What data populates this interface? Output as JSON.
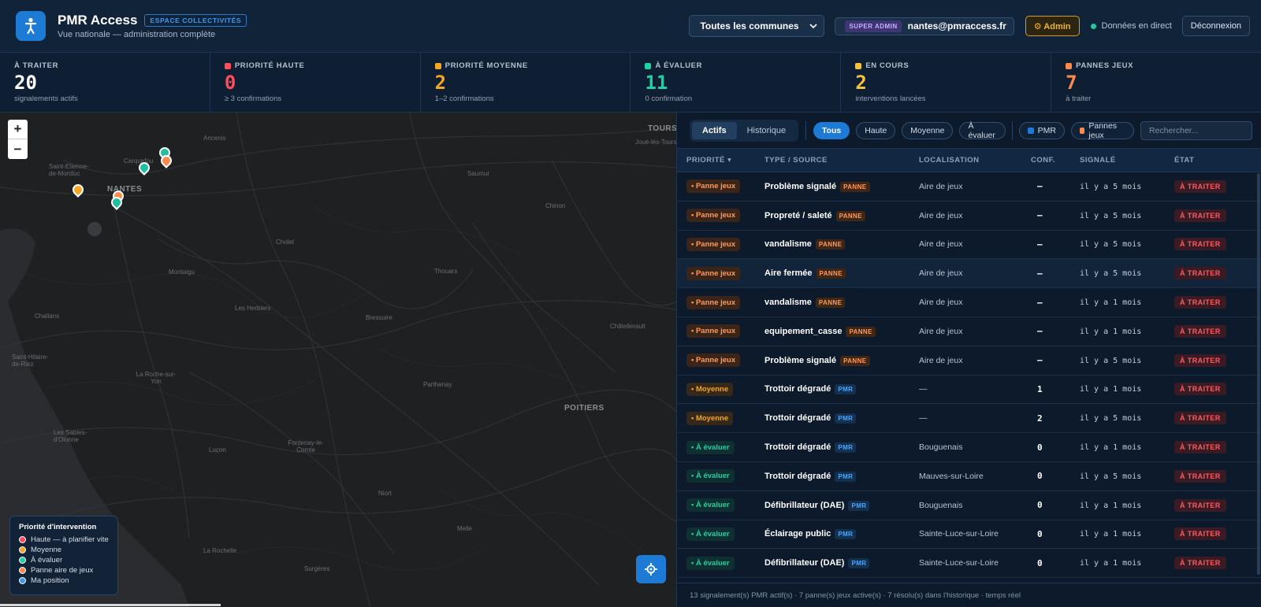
{
  "header": {
    "title": "PMR Access",
    "tag": "ESPACE COLLECTIVITÉS",
    "subtitle": "Vue nationale — administration complète",
    "commune_select": "Toutes les communes",
    "role_badge": "SUPER ADMIN",
    "user_email": "nantes@pmraccess.fr",
    "admin_label": "⚙ Admin",
    "live_label": "Données en direct",
    "logout_label": "Déconnexion"
  },
  "stats": [
    {
      "label": "À TRAITER",
      "value": "20",
      "sub": "signalements actifs",
      "color": "#ffffff",
      "marker": ""
    },
    {
      "label": "PRIORITÉ HAUTE",
      "value": "0",
      "sub": "≥ 3 confirmations",
      "color": "#ff4d5a",
      "marker": "#ff4d5a"
    },
    {
      "label": "PRIORITÉ MOYENNE",
      "value": "2",
      "sub": "1–2 confirmations",
      "color": "#f5a623",
      "marker": "#f5a623"
    },
    {
      "label": "À ÉVALUER",
      "value": "11",
      "sub": "0 confirmation",
      "color": "#1fd1a5",
      "marker": "#1fd1a5"
    },
    {
      "label": "EN COURS",
      "value": "2",
      "sub": "interventions lancées",
      "color": "#f5c33b",
      "marker": "#f5c33b"
    },
    {
      "label": "PANNES JEUX",
      "value": "7",
      "sub": "à traiter",
      "color": "#ff8a4c",
      "marker": "#ff8a4c"
    }
  ],
  "map": {
    "cities": [
      "Ancenis",
      "Saint-Etienne-de-Montluc",
      "NANTES",
      "Cholet",
      "Montaigu",
      "Challans",
      "Les Herbiers",
      "Saint-Hilaire-de-Riez",
      "La Roche-sur-Yon",
      "Bressuire",
      "Thouars",
      "Parthenay",
      "Les Sables-d'Olonne",
      "Luçon",
      "Fontenay-le-Comte",
      "Niort",
      "La Rochelle",
      "Surgères",
      "Melle",
      "POITIERS",
      "Châtellerault",
      "Chinon",
      "Saumur",
      "TOURS",
      "Joué-lès-Tours",
      "Carquefou"
    ],
    "zoom_in": "+",
    "zoom_out": "−",
    "legend_title": "Priorité d'intervention",
    "legend": [
      {
        "label": "Haute — à planifier vite",
        "color": "#ff4d5a"
      },
      {
        "label": "Moyenne",
        "color": "#f5a623"
      },
      {
        "label": "À évaluer",
        "color": "#1fd1a5"
      },
      {
        "label": "Panne aire de jeux",
        "color": "#ff8a4c"
      },
      {
        "label": "Ma position",
        "color": "#3d9bf0"
      }
    ]
  },
  "panel": {
    "tabs": [
      "Actifs",
      "Historique"
    ],
    "filters": [
      "Tous",
      "Haute",
      "Moyenne",
      "À évaluer",
      "PMR",
      "Pannes jeux"
    ],
    "search_placeholder": "Rechercher...",
    "columns": [
      "PRIORITÉ ▾",
      "TYPE / SOURCE",
      "LOCALISATION",
      "CONF.",
      "SIGNALÉ",
      "ÉTAT"
    ],
    "rows": [
      {
        "priority": "• Panne jeux",
        "type": "Problème signalé",
        "source": "PANNE",
        "location": "Aire de jeux",
        "conf": "–",
        "reported": "il y a 5 mois",
        "state": "À TRAITER"
      },
      {
        "priority": "• Panne jeux",
        "type": "Propreté / saleté",
        "source": "PANNE",
        "location": "Aire de jeux",
        "conf": "–",
        "reported": "il y a 5 mois",
        "state": "À TRAITER"
      },
      {
        "priority": "• Panne jeux",
        "type": "vandalisme",
        "source": "PANNE",
        "location": "Aire de jeux",
        "conf": "–",
        "reported": "il y a 5 mois",
        "state": "À TRAITER"
      },
      {
        "priority": "• Panne jeux",
        "type": "Aire fermée",
        "source": "PANNE",
        "location": "Aire de jeux",
        "conf": "–",
        "reported": "il y a 5 mois",
        "state": "À TRAITER"
      },
      {
        "priority": "• Panne jeux",
        "type": "vandalisme",
        "source": "PANNE",
        "location": "Aire de jeux",
        "conf": "–",
        "reported": "il y a 1 mois",
        "state": "À TRAITER"
      },
      {
        "priority": "• Panne jeux",
        "type": "equipement_casse",
        "source": "PANNE",
        "location": "Aire de jeux",
        "conf": "–",
        "reported": "il y a 1 mois",
        "state": "À TRAITER"
      },
      {
        "priority": "• Panne jeux",
        "type": "Problème signalé",
        "source": "PANNE",
        "location": "Aire de jeux",
        "conf": "–",
        "reported": "il y a 5 mois",
        "state": "À TRAITER"
      },
      {
        "priority": "• Moyenne",
        "type": "Trottoir dégradé",
        "source": "PMR",
        "location": "—",
        "conf": "1",
        "reported": "il y a 1 mois",
        "state": "À TRAITER"
      },
      {
        "priority": "• Moyenne",
        "type": "Trottoir dégradé",
        "source": "PMR",
        "location": "—",
        "conf": "2",
        "reported": "il y a 5 mois",
        "state": "À TRAITER"
      },
      {
        "priority": "• À évaluer",
        "type": "Trottoir dégradé",
        "source": "PMR",
        "location": "Bouguenais",
        "conf": "0",
        "reported": "il y a 1 mois",
        "state": "À TRAITER"
      },
      {
        "priority": "• À évaluer",
        "type": "Trottoir dégradé",
        "source": "PMR",
        "location": "Mauves-sur-Loire",
        "conf": "0",
        "reported": "il y a 5 mois",
        "state": "À TRAITER"
      },
      {
        "priority": "• À évaluer",
        "type": "Défibrillateur (DAE)",
        "source": "PMR",
        "location": "Bouguenais",
        "conf": "0",
        "reported": "il y a 1 mois",
        "state": "À TRAITER"
      },
      {
        "priority": "• À évaluer",
        "type": "Éclairage public",
        "source": "PMR",
        "location": "Sainte-Luce-sur-Loire",
        "conf": "0",
        "reported": "il y a 1 mois",
        "state": "À TRAITER"
      },
      {
        "priority": "• À évaluer",
        "type": "Défibrillateur (DAE)",
        "source": "PMR",
        "location": "Sainte-Luce-sur-Loire",
        "conf": "0",
        "reported": "il y a 1 mois",
        "state": "À TRAITER"
      }
    ],
    "footer": "13 signalement(s) PMR actif(s) · 7 panne(s) jeux active(s) · 7 résolu(s) dans l'historique · temps réel"
  }
}
